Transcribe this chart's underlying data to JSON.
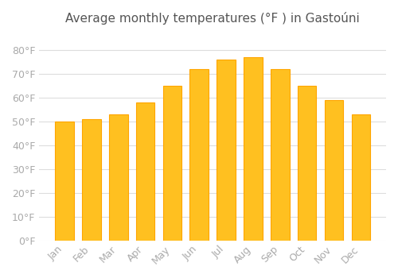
{
  "title": "Average monthly temperatures (°F ) in Gastoúni",
  "months": [
    "Jan",
    "Feb",
    "Mar",
    "Apr",
    "May",
    "Jun",
    "Jul",
    "Aug",
    "Sep",
    "Oct",
    "Nov",
    "Dec"
  ],
  "values": [
    50,
    51,
    53,
    58,
    65,
    72,
    76,
    77,
    72,
    65,
    59,
    53
  ],
  "bar_color": "#FFC020",
  "bar_edge_color": "#FFA500",
  "background_color": "#ffffff",
  "grid_color": "#dddddd",
  "text_color": "#aaaaaa",
  "title_color": "#555555",
  "ylim": [
    0,
    88
  ],
  "yticks": [
    0,
    10,
    20,
    30,
    40,
    50,
    60,
    70,
    80
  ],
  "ylabel_suffix": "°F",
  "title_fontsize": 11,
  "tick_fontsize": 9
}
